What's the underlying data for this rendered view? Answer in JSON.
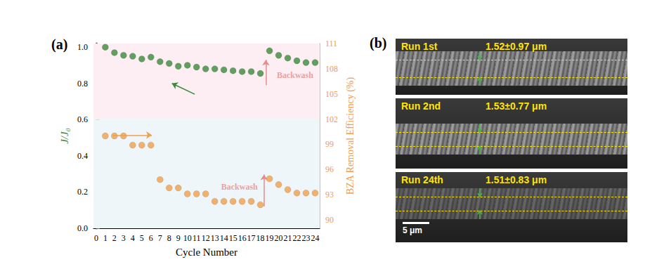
{
  "chart_data": {
    "type": "scatter",
    "title": "(a)",
    "x_label": "Cycle Number",
    "y_label": "J/J₀",
    "y2_label": "BZA Removal Efficiency (%)",
    "x": [
      1,
      2,
      3,
      4,
      5,
      6,
      7,
      8,
      9,
      10,
      11,
      12,
      13,
      14,
      15,
      16,
      17,
      18,
      19,
      20,
      21,
      22,
      23,
      24
    ],
    "series": [
      {
        "color": "#3a8a3a",
        "marker": "circle",
        "axis": "y",
        "values": [
          1.0,
          0.97,
          0.955,
          0.95,
          0.935,
          0.945,
          0.92,
          0.91,
          0.895,
          0.9,
          0.89,
          0.88,
          0.88,
          0.875,
          0.87,
          0.865,
          0.865,
          0.855,
          0.98,
          0.955,
          0.94,
          0.925,
          0.915,
          0.915
        ]
      },
      {
        "color": "#f0a04b",
        "marker": "circle",
        "axis": "y2",
        "values": [
          100.0,
          100.0,
          100.0,
          98.9,
          98.9,
          98.9,
          94.8,
          93.8,
          93.8,
          93.1,
          93.1,
          93.1,
          92.2,
          92.2,
          92.2,
          92.2,
          92.2,
          91.8,
          94.9,
          94.2,
          93.6,
          93.2,
          93.2,
          93.2
        ]
      }
    ],
    "xlim": [
      -0.3,
      24.5
    ],
    "xticks": [
      0,
      1,
      2,
      3,
      4,
      5,
      6,
      7,
      8,
      9,
      10,
      11,
      12,
      13,
      14,
      15,
      16,
      17,
      18,
      19,
      20,
      21,
      22,
      23,
      24
    ],
    "ylim": [
      0,
      1.02
    ],
    "yticks": [
      {
        "value": 0,
        "label": "0.0"
      },
      0.2,
      0.4,
      0.6,
      0.8,
      {
        "value": 1,
        "label": "1.0"
      }
    ],
    "y2lim": [
      89,
      111
    ],
    "y2ticks": [
      90,
      93,
      96,
      99,
      102,
      105,
      108,
      111
    ],
    "bands": [
      {
        "from": 0.6,
        "to": 1.02,
        "color": "#fdeef3"
      },
      {
        "from": 0,
        "to": 0.6,
        "color": "#eef6fa"
      }
    ],
    "annotations": [
      {
        "text": "Backwash",
        "x": 21.8,
        "y": 0.845,
        "axis": "y",
        "color": "#e88a8a",
        "from": [
          18.6,
          0.79
        ],
        "to": [
          18.6,
          0.93
        ]
      },
      {
        "text": "Backwash",
        "x": 15.7,
        "y": 93.9,
        "axis": "y2",
        "color": "#e88a8a",
        "from": [
          18.4,
          91.6
        ],
        "to": [
          18.4,
          95.4
        ]
      },
      {
        "axis": "y",
        "color": "#3a8a3a",
        "from": [
          10.8,
          0.74
        ],
        "to": [
          8.3,
          0.8
        ]
      },
      {
        "axis": "y2",
        "color": "#f0a04b",
        "from": [
          1.8,
          100.1
        ],
        "to": [
          6.1,
          100.1
        ]
      }
    ],
    "grid": false
  },
  "panel_b": {
    "label": "(b)",
    "images": [
      {
        "run": "Run 1st",
        "thickness": "1.52±0.97 μm"
      },
      {
        "run": "Run 2nd",
        "thickness": "1.53±0.77 μm"
      },
      {
        "run": "Run 24th",
        "thickness": "1.51±0.83 μm"
      }
    ],
    "scale_bar": "5 μm"
  }
}
